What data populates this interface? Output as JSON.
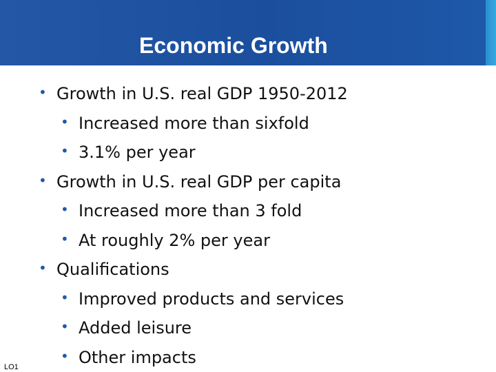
{
  "slide": {
    "title": "Economic Growth",
    "corner_label": "LO1",
    "colors": {
      "banner": "#1b4f9e",
      "banner_accent": "#37a9e0",
      "bullet": "#1f5aa8"
    },
    "bullets": [
      {
        "text": "Growth in U.S. real GDP 1950-2012",
        "subs": [
          "Increased more than sixfold",
          "3.1% per year"
        ]
      },
      {
        "text": "Growth in U.S. real GDP per capita",
        "subs": [
          "Increased more than 3 fold",
          "At roughly 2% per year"
        ]
      },
      {
        "text": "Qualifications",
        "subs": [
          "Improved products and services",
          "Added leisure",
          "Other impacts"
        ]
      }
    ]
  }
}
